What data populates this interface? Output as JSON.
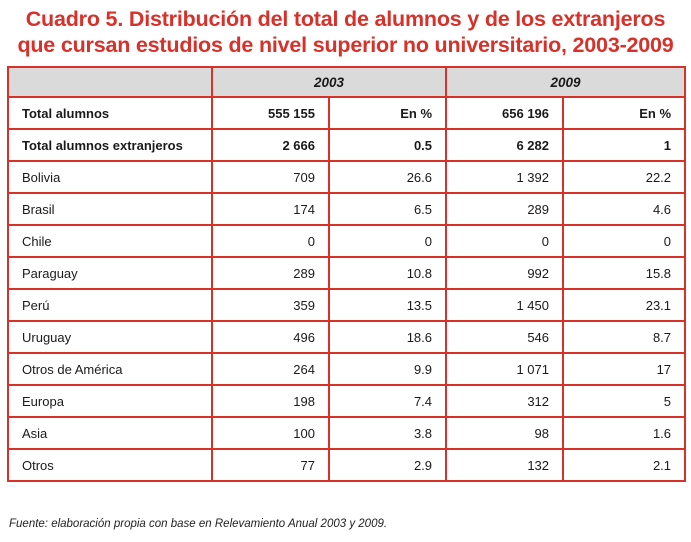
{
  "title_line1": "Cuadro 5. Distribución del total de alumnos y de los extranjeros",
  "title_line2": "que cursan estudios de nivel superior no universitario, 2003-2009",
  "years": [
    "2003",
    "2009"
  ],
  "summary_rows": [
    {
      "label": "Total alumnos",
      "v2003": "555 155",
      "p2003": "En %",
      "v2009": "656 196",
      "p2009": "En %"
    },
    {
      "label": "Total alumnos extranjeros",
      "v2003": "2 666",
      "p2003": "0.5",
      "v2009": "6 282",
      "p2009": "1"
    }
  ],
  "rows": [
    {
      "label": "Bolivia",
      "v2003": "709",
      "p2003": "26.6",
      "v2009": "1 392",
      "p2009": "22.2"
    },
    {
      "label": "Brasil",
      "v2003": "174",
      "p2003": "6.5",
      "v2009": "289",
      "p2009": "4.6"
    },
    {
      "label": "Chile",
      "v2003": "0",
      "p2003": "0",
      "v2009": "0",
      "p2009": "0"
    },
    {
      "label": "Paraguay",
      "v2003": "289",
      "p2003": "10.8",
      "v2009": "992",
      "p2009": "15.8"
    },
    {
      "label": "Perú",
      "v2003": "359",
      "p2003": "13.5",
      "v2009": "1 450",
      "p2009": "23.1"
    },
    {
      "label": "Uruguay",
      "v2003": "496",
      "p2003": "18.6",
      "v2009": "546",
      "p2009": "8.7"
    },
    {
      "label": "Otros de América",
      "v2003": "264",
      "p2003": "9.9",
      "v2009": "1 071",
      "p2009": "17"
    },
    {
      "label": "Europa",
      "v2003": "198",
      "p2003": "7.4",
      "v2009": "312",
      "p2009": "5"
    },
    {
      "label": "Asia",
      "v2003": "100",
      "p2003": "3.8",
      "v2009": "98",
      "p2009": "1.6"
    },
    {
      "label": "Otros",
      "v2003": "77",
      "p2003": "2.9",
      "v2009": "132",
      "p2009": "2.1"
    }
  ],
  "source": "Fuente: elaboración propia con base en Relevamiento Anual 2003 y 2009.",
  "colors": {
    "accent": "#d8312a",
    "header_bg": "#dadada"
  }
}
